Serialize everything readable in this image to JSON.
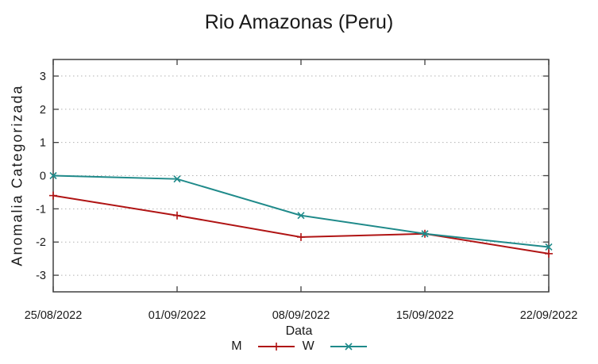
{
  "chart_data": {
    "type": "line",
    "title": "Rio Amazonas (Peru)",
    "xlabel": "Data",
    "ylabel": "Anomalia Categorizada",
    "categories": [
      "25/08/2022",
      "01/09/2022",
      "08/09/2022",
      "15/09/2022",
      "22/09/2022"
    ],
    "series": [
      {
        "name": "M",
        "color": "#b01414",
        "marker": "plus",
        "values": [
          -0.6,
          -1.2,
          -1.85,
          -1.75,
          -2.35
        ]
      },
      {
        "name": "W",
        "color": "#1f8a8a",
        "marker": "cross",
        "values": [
          0.0,
          -0.1,
          -1.2,
          -1.75,
          -2.15
        ]
      }
    ],
    "ylim": [
      -3.5,
      3.5
    ],
    "yticks": [
      -3,
      -2,
      -1,
      0,
      1,
      2,
      3
    ],
    "grid": "horizontal-dotted",
    "legend_position": "bottom-center",
    "colors": {
      "grid": "#b3b3b3",
      "border": "#404040",
      "text": "#1a1a1a",
      "background": "#ffffff"
    }
  }
}
